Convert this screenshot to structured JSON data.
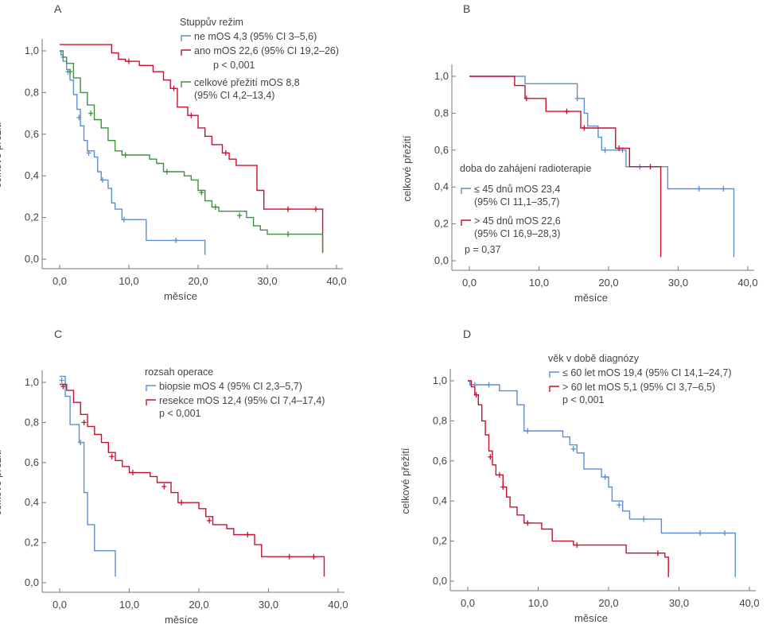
{
  "colors": {
    "blue": "#5b8fd1",
    "red": "#c8102e",
    "green": "#3f8f3f",
    "axis": "#777777",
    "text": "#444444"
  },
  "chart_data": [
    {
      "panel": "A",
      "type": "line",
      "ylabel": "celkové přežití",
      "xlabel": "měsíce",
      "xlim": [
        0,
        40
      ],
      "ylim": [
        0,
        1
      ],
      "x_ticks": [
        "0,0",
        "10,0",
        "20,0",
        "30,0",
        "40,0"
      ],
      "y_ticks": [
        "0,0",
        "0,2",
        "0,4",
        "0,6",
        "0,8",
        "1,0"
      ],
      "legend_title": "Stuppův režim",
      "p_value": "p < 0,001",
      "series": [
        {
          "name": "ne",
          "label": "ne      mOS 4,3 (95% CI 3–5,6)",
          "color": "blue",
          "points": [
            [
              0,
              1
            ],
            [
              0.2,
              0.98
            ],
            [
              0.5,
              0.95
            ],
            [
              1,
              0.91
            ],
            [
              1.5,
              0.86
            ],
            [
              2,
              0.79
            ],
            [
              2.5,
              0.72
            ],
            [
              3,
              0.64
            ],
            [
              3.5,
              0.57
            ],
            [
              4,
              0.52
            ],
            [
              5,
              0.49
            ],
            [
              5.5,
              0.42
            ],
            [
              6,
              0.38
            ],
            [
              7,
              0.34
            ],
            [
              7.5,
              0.27
            ],
            [
              8,
              0.24
            ],
            [
              9,
              0.19
            ],
            [
              12.5,
              0.09
            ],
            [
              21,
              0.09
            ],
            [
              21,
              0.02
            ]
          ],
          "censored": [
            [
              0.5,
              0.97
            ],
            [
              1.2,
              0.9
            ],
            [
              2.8,
              0.68
            ],
            [
              4.2,
              0.51
            ],
            [
              6.2,
              0.38
            ],
            [
              9.3,
              0.19
            ],
            [
              16.8,
              0.09
            ]
          ]
        },
        {
          "name": "ano",
          "label": "ano    mOS 22,6 (95% CI 19,2–26)",
          "color": "red",
          "points": [
            [
              0,
              1.03
            ],
            [
              7,
              1.03
            ],
            [
              7.5,
              0.99
            ],
            [
              8.5,
              0.96
            ],
            [
              9.5,
              0.95
            ],
            [
              11.5,
              0.93
            ],
            [
              13.5,
              0.9
            ],
            [
              15,
              0.86
            ],
            [
              16,
              0.82
            ],
            [
              17,
              0.73
            ],
            [
              18.5,
              0.69
            ],
            [
              20,
              0.63
            ],
            [
              21,
              0.59
            ],
            [
              22,
              0.55
            ],
            [
              23.5,
              0.51
            ],
            [
              24.5,
              0.48
            ],
            [
              25.5,
              0.45
            ],
            [
              28.5,
              0.33
            ],
            [
              29.5,
              0.24
            ],
            [
              38,
              0.24
            ],
            [
              38,
              0.03
            ]
          ],
          "censored": [
            [
              10,
              0.95
            ],
            [
              16.5,
              0.82
            ],
            [
              19,
              0.69
            ],
            [
              24,
              0.51
            ],
            [
              33,
              0.24
            ],
            [
              37,
              0.24
            ]
          ]
        },
        {
          "name": "celkové přežití",
          "label": "celkové přežití mOS 8,8",
          "label2": "(95% CI 4,2–13,4)",
          "color": "green",
          "points": [
            [
              0,
              1
            ],
            [
              0.5,
              0.97
            ],
            [
              1,
              0.94
            ],
            [
              2,
              0.87
            ],
            [
              3,
              0.8
            ],
            [
              4,
              0.74
            ],
            [
              5,
              0.67
            ],
            [
              6,
              0.63
            ],
            [
              7,
              0.57
            ],
            [
              8,
              0.52
            ],
            [
              9,
              0.5
            ],
            [
              13,
              0.48
            ],
            [
              14,
              0.46
            ],
            [
              15,
              0.42
            ],
            [
              18,
              0.4
            ],
            [
              19,
              0.38
            ],
            [
              20,
              0.33
            ],
            [
              21,
              0.28
            ],
            [
              22,
              0.25
            ],
            [
              23,
              0.23
            ],
            [
              27,
              0.2
            ],
            [
              28,
              0.16
            ],
            [
              29,
              0.14
            ],
            [
              30,
              0.12
            ],
            [
              38,
              0.12
            ],
            [
              38,
              0.03
            ]
          ],
          "censored": [
            [
              1.5,
              0.9
            ],
            [
              4.5,
              0.7
            ],
            [
              9.5,
              0.5
            ],
            [
              15.5,
              0.42
            ],
            [
              20.5,
              0.32
            ],
            [
              22.5,
              0.25
            ],
            [
              26,
              0.21
            ],
            [
              33,
              0.12
            ]
          ]
        }
      ]
    },
    {
      "panel": "B",
      "type": "line",
      "ylabel": "celkové přežití",
      "xlabel": "měsíce",
      "xlim": [
        0,
        40
      ],
      "ylim": [
        0,
        1
      ],
      "x_ticks": [
        "0,0",
        "10,0",
        "20,0",
        "30,0",
        "40,0"
      ],
      "y_ticks": [
        "0,0",
        "0,2",
        "0,4",
        "0,6",
        "0,8",
        "1,0"
      ],
      "legend_title": "doba do zahájení radioterapie",
      "p_value": "p = 0,37",
      "series": [
        {
          "name": "≤ 45 dnů",
          "label": "≤ 45 dnů mOS 23,4",
          "label2": "(95% CI 11,1–35,7)",
          "color": "blue",
          "points": [
            [
              0,
              1
            ],
            [
              7.5,
              1
            ],
            [
              8,
              0.96
            ],
            [
              15,
              0.96
            ],
            [
              15.5,
              0.88
            ],
            [
              16.5,
              0.8
            ],
            [
              17,
              0.73
            ],
            [
              18.5,
              0.67
            ],
            [
              19,
              0.6
            ],
            [
              22,
              0.6
            ],
            [
              22.5,
              0.51
            ],
            [
              27.5,
              0.51
            ],
            [
              28.5,
              0.39
            ],
            [
              38,
              0.39
            ],
            [
              38,
              0.02
            ]
          ],
          "censored": [
            [
              15.5,
              0.88
            ],
            [
              19.5,
              0.6
            ],
            [
              22,
              0.6
            ],
            [
              24.5,
              0.51
            ],
            [
              33,
              0.39
            ],
            [
              36.5,
              0.39
            ]
          ]
        },
        {
          "name": "> 45 dnů",
          "label": "> 45 dnů mOS 22,6",
          "label2": "(95% CI 16,9–28,3)",
          "color": "red",
          "points": [
            [
              0,
              1
            ],
            [
              6.5,
              1
            ],
            [
              6.5,
              0.95
            ],
            [
              7.5,
              0.95
            ],
            [
              8,
              0.88
            ],
            [
              10,
              0.88
            ],
            [
              11,
              0.81
            ],
            [
              15,
              0.81
            ],
            [
              16,
              0.72
            ],
            [
              20.5,
              0.72
            ],
            [
              21,
              0.61
            ],
            [
              22.5,
              0.61
            ],
            [
              23,
              0.51
            ],
            [
              27,
              0.51
            ],
            [
              27.5,
              0.27
            ],
            [
              27.5,
              0.02
            ]
          ],
          "censored": [
            [
              8.2,
              0.88
            ],
            [
              14,
              0.81
            ],
            [
              16.5,
              0.72
            ],
            [
              21.5,
              0.61
            ],
            [
              26,
              0.51
            ]
          ]
        }
      ]
    },
    {
      "panel": "C",
      "type": "line",
      "ylabel": "celkové přežití",
      "xlabel": "měsíce",
      "xlim": [
        0,
        40
      ],
      "ylim": [
        0,
        1
      ],
      "x_ticks": [
        "0,0",
        "10,0",
        "20,0",
        "30,0",
        "40,0"
      ],
      "y_ticks": [
        "0,0",
        "0,2",
        "0,4",
        "0,6",
        "0,8",
        "1,0"
      ],
      "legend_title": "rozsah operace",
      "p_value": "p < 0,001",
      "series": [
        {
          "name": "biopsie",
          "label": "biopsie    mOS 4 (95% CI 2,3–5,7)",
          "color": "blue",
          "points": [
            [
              0,
              1.03
            ],
            [
              0.5,
              1.03
            ],
            [
              0.8,
              0.93
            ],
            [
              1.5,
              0.79
            ],
            [
              2.8,
              0.7
            ],
            [
              3.5,
              0.45
            ],
            [
              4,
              0.29
            ],
            [
              5,
              0.16
            ],
            [
              8,
              0.16
            ],
            [
              8,
              0.03
            ]
          ],
          "censored": [
            [
              0.3,
              1.01
            ],
            [
              3,
              0.7
            ]
          ]
        },
        {
          "name": "resekce",
          "label": "resekce   mOS 12,4 (95% CI 7,4–17,4)",
          "color": "red",
          "points": [
            [
              0,
              0.99
            ],
            [
              1,
              0.96
            ],
            [
              2,
              0.9
            ],
            [
              3,
              0.84
            ],
            [
              4,
              0.78
            ],
            [
              5,
              0.74
            ],
            [
              6,
              0.7
            ],
            [
              7,
              0.65
            ],
            [
              8,
              0.61
            ],
            [
              9,
              0.58
            ],
            [
              10,
              0.55
            ],
            [
              13,
              0.53
            ],
            [
              14,
              0.5
            ],
            [
              16,
              0.45
            ],
            [
              17,
              0.4
            ],
            [
              20,
              0.37
            ],
            [
              21,
              0.33
            ],
            [
              22,
              0.29
            ],
            [
              24,
              0.27
            ],
            [
              25,
              0.24
            ],
            [
              28,
              0.19
            ],
            [
              29,
              0.13
            ],
            [
              38,
              0.13
            ],
            [
              38,
              0.03
            ]
          ],
          "censored": [
            [
              0.5,
              0.98
            ],
            [
              3.5,
              0.8
            ],
            [
              7.5,
              0.63
            ],
            [
              10.5,
              0.55
            ],
            [
              15,
              0.48
            ],
            [
              17.5,
              0.4
            ],
            [
              21.5,
              0.31
            ],
            [
              27,
              0.24
            ],
            [
              33,
              0.13
            ],
            [
              36.5,
              0.13
            ]
          ]
        }
      ]
    },
    {
      "panel": "D",
      "type": "line",
      "ylabel": "celkové přežití",
      "xlabel": "měsíce",
      "xlim": [
        0,
        40
      ],
      "ylim": [
        0,
        1
      ],
      "x_ticks": [
        "0,0",
        "10,0",
        "20,0",
        "30,0",
        "40,0"
      ],
      "y_ticks": [
        "0,0",
        "0,2",
        "0,4",
        "0,6",
        "0,8",
        "1,0"
      ],
      "legend_title": "věk v době diagnózy",
      "p_value": "p < 0,001",
      "series": [
        {
          "name": "≤ 60 let",
          "label": "≤ 60 let   mOS 19,4 (95% CI 14,1–24,7)",
          "color": "blue",
          "points": [
            [
              0,
              1
            ],
            [
              0.3,
              0.98
            ],
            [
              4,
              0.98
            ],
            [
              4.5,
              0.95
            ],
            [
              6,
              0.95
            ],
            [
              7,
              0.88
            ],
            [
              8,
              0.75
            ],
            [
              12,
              0.75
            ],
            [
              13.5,
              0.72
            ],
            [
              14.5,
              0.68
            ],
            [
              15.5,
              0.64
            ],
            [
              16.5,
              0.56
            ],
            [
              18,
              0.56
            ],
            [
              19,
              0.52
            ],
            [
              20,
              0.47
            ],
            [
              20.5,
              0.4
            ],
            [
              22,
              0.35
            ],
            [
              23,
              0.31
            ],
            [
              27.5,
              0.24
            ],
            [
              38,
              0.24
            ],
            [
              38,
              0.02
            ]
          ],
          "censored": [
            [
              1,
              0.98
            ],
            [
              3,
              0.98
            ],
            [
              8.5,
              0.75
            ],
            [
              15,
              0.66
            ],
            [
              19.5,
              0.52
            ],
            [
              21.5,
              0.38
            ],
            [
              25,
              0.31
            ],
            [
              33,
              0.24
            ],
            [
              36.5,
              0.24
            ]
          ]
        },
        {
          "name": "> 60 let",
          "label": "> 60 let   mOS 5,1 (95% CI 3,7–6,5)",
          "color": "red",
          "points": [
            [
              0,
              1
            ],
            [
              0.5,
              0.97
            ],
            [
              1,
              0.93
            ],
            [
              1.5,
              0.88
            ],
            [
              2,
              0.8
            ],
            [
              2.5,
              0.73
            ],
            [
              3,
              0.65
            ],
            [
              3.5,
              0.58
            ],
            [
              4,
              0.53
            ],
            [
              5,
              0.47
            ],
            [
              5.5,
              0.42
            ],
            [
              6,
              0.37
            ],
            [
              7,
              0.33
            ],
            [
              8,
              0.29
            ],
            [
              10.5,
              0.26
            ],
            [
              12,
              0.2
            ],
            [
              15,
              0.18
            ],
            [
              22.5,
              0.14
            ],
            [
              28,
              0.14
            ],
            [
              28,
              0.12
            ],
            [
              28.5,
              0.08
            ],
            [
              28.5,
              0.02
            ]
          ],
          "censored": [
            [
              1.2,
              0.93
            ],
            [
              3.2,
              0.62
            ],
            [
              4.5,
              0.53
            ],
            [
              5,
              0.47
            ],
            [
              8.5,
              0.29
            ],
            [
              15.5,
              0.18
            ],
            [
              27,
              0.14
            ]
          ]
        }
      ]
    }
  ]
}
